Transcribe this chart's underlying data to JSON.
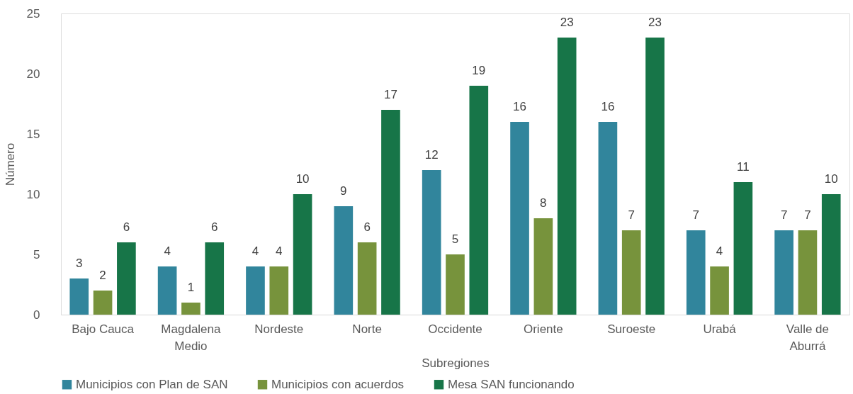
{
  "chart_data": {
    "type": "bar",
    "xlabel": "Subregiones",
    "ylabel": "Número",
    "categories": [
      "Bajo Cauca",
      "Magdalena Medio",
      "Nordeste",
      "Norte",
      "Occidente",
      "Oriente",
      "Suroeste",
      "Urabá",
      "Valle de Aburrá"
    ],
    "series": [
      {
        "name": "Municipios con Plan de SAN",
        "color": "#31859c",
        "values": [
          3,
          4,
          4,
          9,
          12,
          16,
          16,
          7,
          7
        ]
      },
      {
        "name": "Municipios con acuerdos",
        "color": "#77933c",
        "values": [
          2,
          1,
          4,
          6,
          5,
          8,
          7,
          4,
          7
        ]
      },
      {
        "name": "Mesa SAN funcionando",
        "color": "#177548",
        "values": [
          6,
          6,
          10,
          17,
          19,
          23,
          23,
          11,
          10
        ]
      }
    ],
    "ylim": [
      0,
      25
    ],
    "yticks": [
      0,
      5,
      10,
      15,
      20,
      25
    ],
    "grid": false,
    "legend": "bottom",
    "data_labels": true
  }
}
